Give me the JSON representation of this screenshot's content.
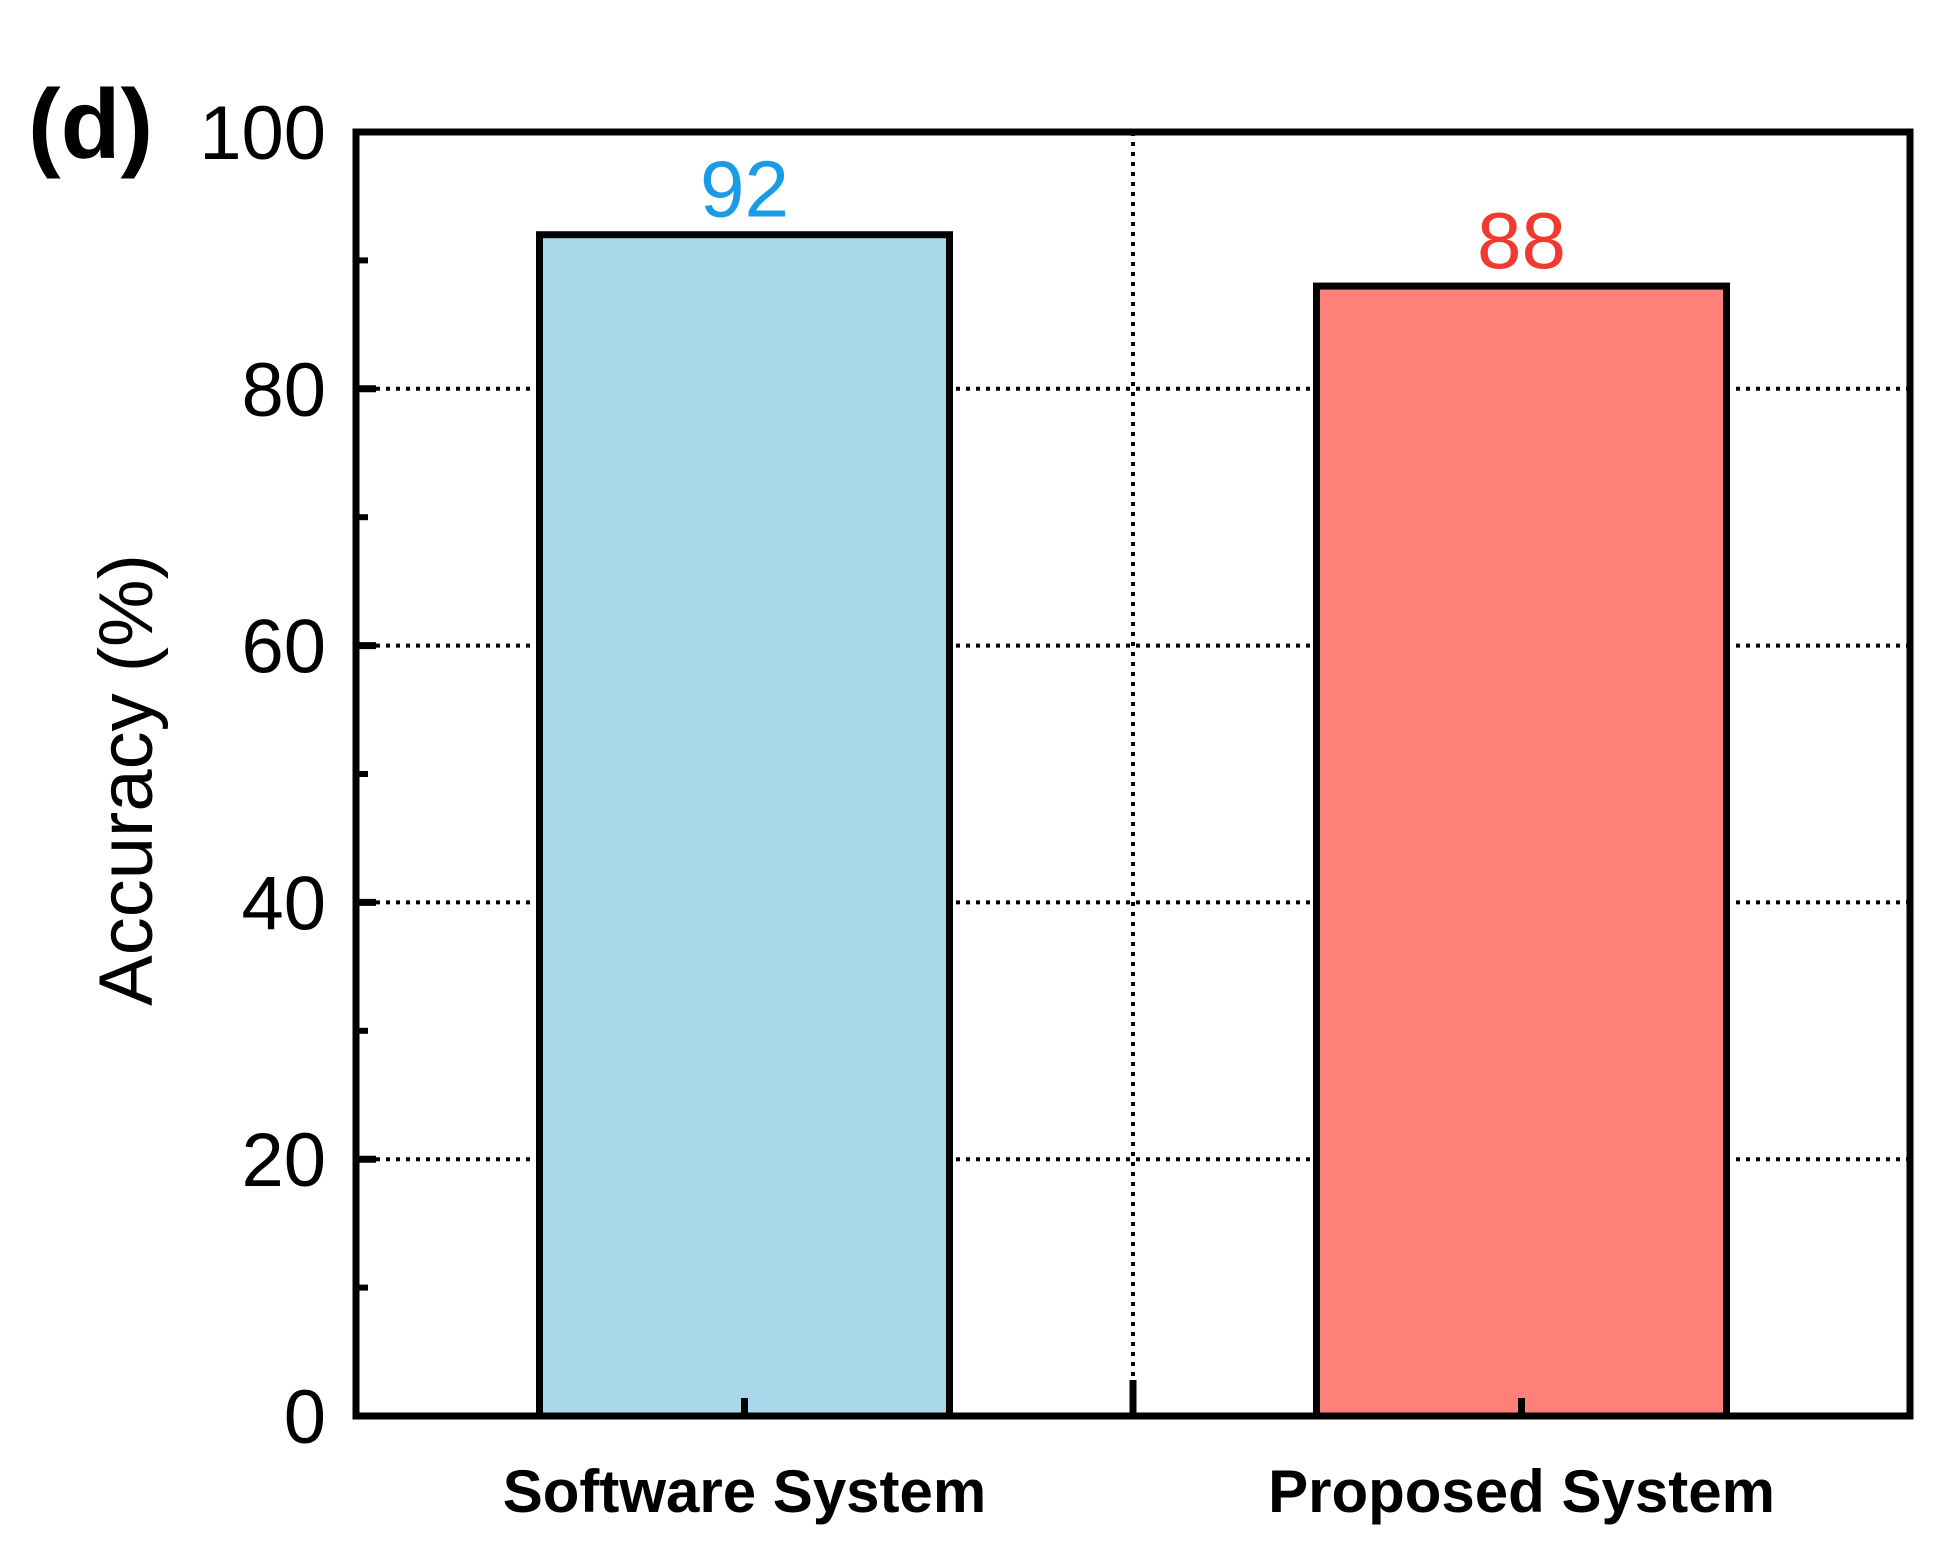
{
  "panel_label": "(d)",
  "chart_data": {
    "type": "bar",
    "categories": [
      "Software System",
      "Proposed System"
    ],
    "values": [
      92,
      88
    ],
    "value_labels": [
      "92",
      "88"
    ],
    "colors": {
      "bars": [
        "#a8d8ea",
        "#ff7f79"
      ],
      "value_labels": [
        "#1a9be6",
        "#f03a30"
      ],
      "grid": "#000000",
      "axis": "#000000"
    },
    "title": "",
    "xlabel": "",
    "ylabel": "Accuracy (%)",
    "ylim": [
      0,
      100
    ],
    "yticks": [
      0,
      20,
      40,
      60,
      80,
      100
    ],
    "y_tick_labels": [
      "0",
      "20",
      "40",
      "60",
      "80",
      "100"
    ],
    "y_minor_ticks": [
      10,
      30,
      50,
      70,
      90
    ],
    "grid": true,
    "grid_style": "dotted",
    "legend": false
  }
}
